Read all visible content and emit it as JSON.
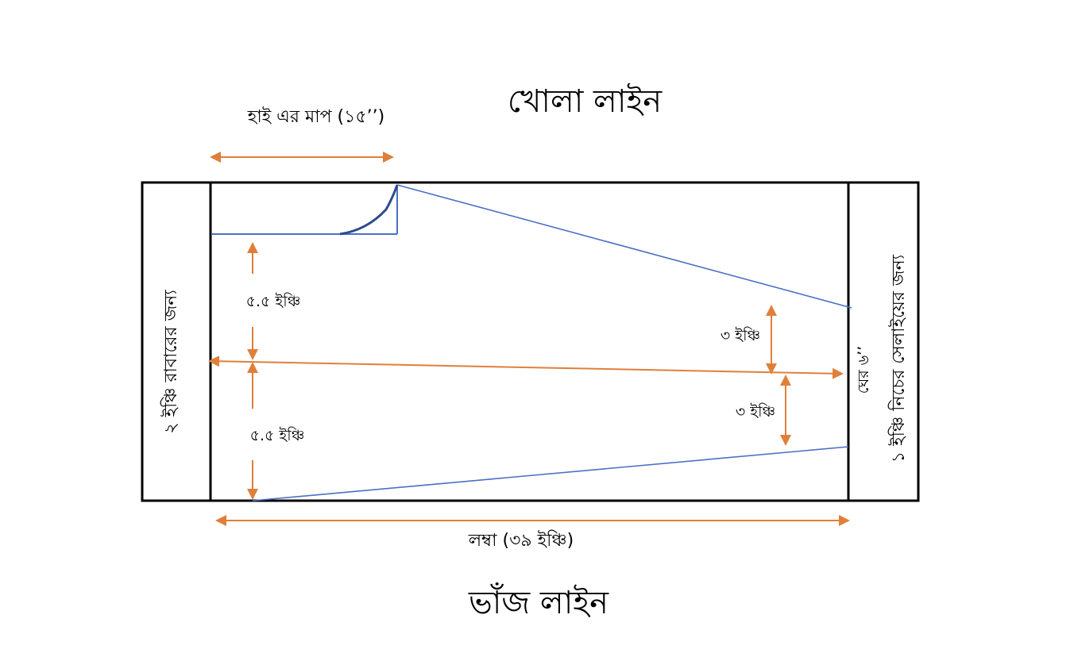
{
  "diagram": {
    "top_title": "খোলা লাইন",
    "bottom_title": "ভাঁজ লাইন",
    "hip_measure": "হাই এর মাপ (১৫’’)",
    "length_measure": "লম্বা (৩৯ ইঞ্চি)",
    "upper_gap": "৫.৫ ইঞ্চি",
    "lower_gap": "৫.৫ ইঞ্চি",
    "right_upper": "৩ ইঞ্চি",
    "right_lower": "৩ ইঞ্চি",
    "hem_width": "ঘের ৬’’",
    "left_margin": "২ ইঞ্চি রাবারের জন্য",
    "right_margin": "১ ইঞ্চি নিচের সেলাইয়ের জন্য",
    "colors": {
      "arrow": "#E07F3A",
      "pattern_line": "#4A6FC4",
      "curve": "#2E4A8C",
      "frame": "#000000"
    }
  }
}
